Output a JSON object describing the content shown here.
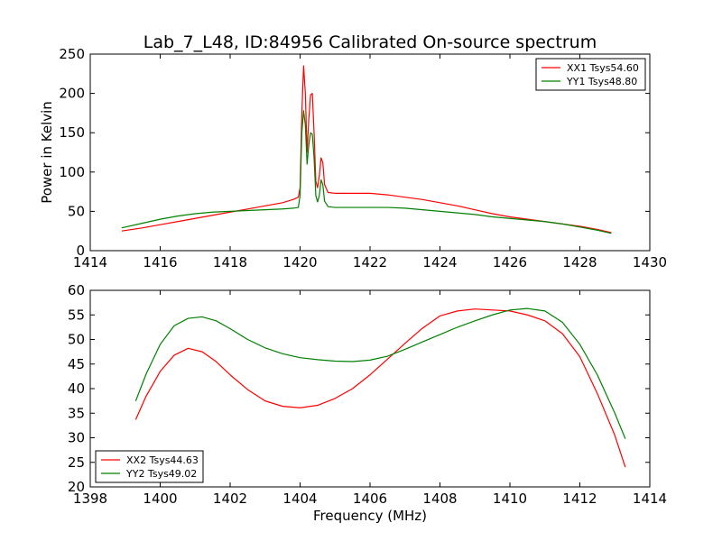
{
  "figure": {
    "title": "Lab_7_L48, ID:84956 Calibrated On-source spectrum",
    "xlabel": "Frequency (MHz)",
    "ylabel_top": "Power in Kelvin"
  },
  "chart_data": [
    {
      "type": "line",
      "title": "Lab_7_L48, ID:84956 Calibrated On-source spectrum",
      "xlabel": "",
      "ylabel": "Power in Kelvin",
      "xlim": [
        1414,
        1430
      ],
      "ylim": [
        0,
        250
      ],
      "xticks": [
        "1414",
        "1416",
        "1418",
        "1420",
        "1422",
        "1424",
        "1426",
        "1428",
        "1430"
      ],
      "yticks": [
        "0",
        "50",
        "100",
        "150",
        "200",
        "250"
      ],
      "legend_position": "top-right",
      "grid": false,
      "series": [
        {
          "name": "XX1 Tsys54.60",
          "color": "#ff0000",
          "x": [
            1414.9,
            1415.5,
            1416.0,
            1416.5,
            1417.0,
            1417.5,
            1418.0,
            1418.5,
            1419.0,
            1419.5,
            1419.8,
            1419.95,
            1420.0,
            1420.05,
            1420.1,
            1420.15,
            1420.2,
            1420.25,
            1420.3,
            1420.35,
            1420.4,
            1420.45,
            1420.5,
            1420.55,
            1420.6,
            1420.65,
            1420.7,
            1420.8,
            1421.0,
            1421.5,
            1422.0,
            1422.5,
            1423.0,
            1423.5,
            1424.0,
            1424.5,
            1425.0,
            1425.5,
            1426.0,
            1426.5,
            1427.0,
            1427.5,
            1428.0,
            1428.5,
            1428.9
          ],
          "values": [
            25,
            29,
            33,
            37,
            41,
            45,
            49,
            53,
            57,
            61,
            65,
            68,
            80,
            175,
            235,
            200,
            125,
            168,
            198,
            200,
            150,
            88,
            80,
            95,
            118,
            112,
            84,
            74,
            73,
            73,
            73,
            71,
            68,
            65,
            61,
            57,
            52,
            47,
            43,
            40,
            37,
            34,
            31,
            27,
            23
          ]
        },
        {
          "name": "YY1 Tsys48.80",
          "color": "#008000",
          "x": [
            1414.9,
            1415.5,
            1416.0,
            1416.5,
            1417.0,
            1417.5,
            1418.0,
            1418.5,
            1419.0,
            1419.5,
            1419.8,
            1419.95,
            1420.0,
            1420.05,
            1420.1,
            1420.15,
            1420.2,
            1420.25,
            1420.3,
            1420.35,
            1420.4,
            1420.45,
            1420.5,
            1420.55,
            1420.6,
            1420.65,
            1420.7,
            1420.8,
            1421.0,
            1421.5,
            1422.0,
            1422.5,
            1423.0,
            1423.5,
            1424.0,
            1424.5,
            1425.0,
            1425.5,
            1426.0,
            1426.5,
            1427.0,
            1427.5,
            1428.0,
            1428.5,
            1428.9
          ],
          "values": [
            29,
            35,
            40,
            44,
            47,
            49,
            50,
            51,
            52,
            53,
            54,
            55,
            70,
            150,
            178,
            160,
            110,
            135,
            150,
            148,
            118,
            70,
            62,
            70,
            90,
            84,
            63,
            56,
            55,
            55,
            55,
            55,
            54,
            52,
            50,
            48,
            46,
            43,
            41,
            39,
            37,
            34,
            30,
            26,
            22
          ]
        }
      ]
    },
    {
      "type": "line",
      "title": "",
      "xlabel": "Frequency (MHz)",
      "ylabel": "",
      "xlim": [
        1398,
        1414
      ],
      "ylim": [
        20,
        60
      ],
      "xticks": [
        "1398",
        "1400",
        "1402",
        "1404",
        "1406",
        "1408",
        "1410",
        "1412",
        "1414"
      ],
      "yticks": [
        "20",
        "25",
        "30",
        "35",
        "40",
        "45",
        "50",
        "55",
        "60"
      ],
      "legend_position": "bottom-left",
      "grid": false,
      "series": [
        {
          "name": "XX2 Tsys44.63",
          "color": "#ff0000",
          "x": [
            1399.3,
            1399.6,
            1400.0,
            1400.4,
            1400.8,
            1401.2,
            1401.6,
            1402.0,
            1402.5,
            1403.0,
            1403.5,
            1404.0,
            1404.5,
            1405.0,
            1405.5,
            1406.0,
            1406.5,
            1407.0,
            1407.5,
            1408.0,
            1408.5,
            1409.0,
            1409.5,
            1410.0,
            1410.5,
            1411.0,
            1411.5,
            1412.0,
            1412.5,
            1413.0,
            1413.3
          ],
          "values": [
            33.7,
            38.5,
            43.5,
            46.8,
            48.2,
            47.5,
            45.5,
            42.8,
            39.8,
            37.5,
            36.4,
            36.1,
            36.6,
            38.0,
            40.0,
            42.8,
            46.0,
            49.2,
            52.3,
            54.8,
            55.8,
            56.2,
            56.0,
            55.8,
            55.0,
            53.8,
            51.2,
            46.5,
            39.0,
            30.5,
            24.0
          ]
        },
        {
          "name": "YY2 Tsys49.02",
          "color": "#008000",
          "x": [
            1399.3,
            1399.6,
            1400.0,
            1400.4,
            1400.8,
            1401.2,
            1401.6,
            1402.0,
            1402.5,
            1403.0,
            1403.5,
            1404.0,
            1404.5,
            1405.0,
            1405.5,
            1406.0,
            1406.5,
            1407.0,
            1407.5,
            1408.0,
            1408.5,
            1409.0,
            1409.5,
            1410.0,
            1410.5,
            1411.0,
            1411.5,
            1412.0,
            1412.5,
            1413.0,
            1413.3
          ],
          "values": [
            37.5,
            43.0,
            49.0,
            52.8,
            54.3,
            54.6,
            53.8,
            52.2,
            50.0,
            48.3,
            47.1,
            46.3,
            45.9,
            45.6,
            45.5,
            45.8,
            46.6,
            48.0,
            49.5,
            51.0,
            52.5,
            53.8,
            55.0,
            56.0,
            56.3,
            55.8,
            53.5,
            49.0,
            42.8,
            35.0,
            29.8
          ]
        }
      ]
    }
  ]
}
